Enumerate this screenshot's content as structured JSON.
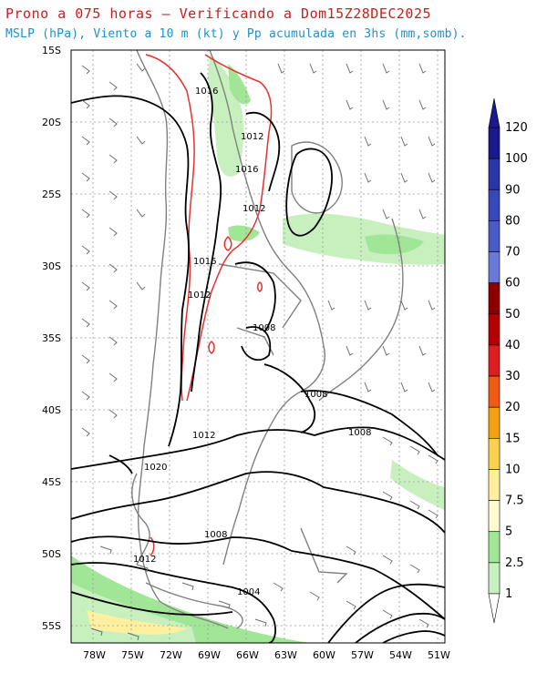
{
  "titles": {
    "line1": "Prono a 075 horas – Verificando a Dom15Z28DEC2025",
    "line2": "MSLP (hPa), Viento a 10 m (kt) y Pp acumulada en 3hs (mm,somb)."
  },
  "map": {
    "lat_labels": [
      "15S",
      "20S",
      "25S",
      "30S",
      "35S",
      "40S",
      "45S",
      "50S",
      "55S"
    ],
    "lon_labels": [
      "78W",
      "75W",
      "72W",
      "69W",
      "66W",
      "63W",
      "60W",
      "57W",
      "54W",
      "51W"
    ],
    "isobar_labels": [
      {
        "text": "1016"
      },
      {
        "text": "1012"
      },
      {
        "text": "1016"
      },
      {
        "text": "1012"
      },
      {
        "text": "1016"
      },
      {
        "text": "1012"
      },
      {
        "text": "1008"
      },
      {
        "text": "1008"
      },
      {
        "text": "1012"
      },
      {
        "text": "1008"
      },
      {
        "text": "1020"
      },
      {
        "text": "1008"
      },
      {
        "text": "1012"
      },
      {
        "text": "1004"
      }
    ]
  },
  "colorbar": {
    "levels": [
      {
        "label": "120",
        "color": "#1a1a8c"
      },
      {
        "label": "100",
        "color": "#2a35a6"
      },
      {
        "label": "90",
        "color": "#3848b8"
      },
      {
        "label": "80",
        "color": "#4a5bc8"
      },
      {
        "label": "70",
        "color": "#6b78d8"
      },
      {
        "label": "60",
        "color": "#8c0000"
      },
      {
        "label": "50",
        "color": "#b40000"
      },
      {
        "label": "40",
        "color": "#dc1e1e"
      },
      {
        "label": "30",
        "color": "#f05a14"
      },
      {
        "label": "20",
        "color": "#f5a014"
      },
      {
        "label": "15",
        "color": "#fad250"
      },
      {
        "label": "10",
        "color": "#fff0a0"
      },
      {
        "label": "7.5",
        "color": "#fffad2"
      },
      {
        "label": "5",
        "color": "#a0e696"
      },
      {
        "label": "2.5",
        "color": "#c8f0be"
      },
      {
        "label": "1",
        "color": "#eefaea"
      }
    ]
  }
}
